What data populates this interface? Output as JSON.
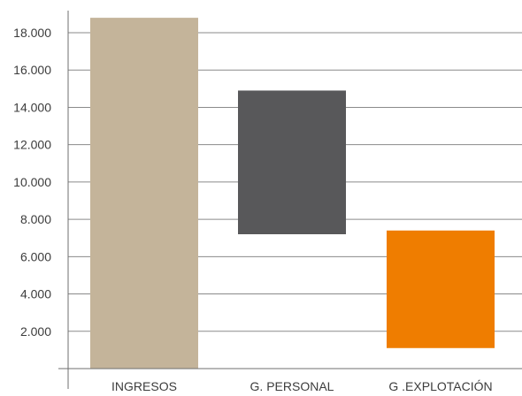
{
  "chart_data": {
    "type": "bar",
    "subtype": "floating-waterfall",
    "title": "",
    "xlabel": "",
    "ylabel": "",
    "ylim": [
      0,
      18800
    ],
    "grid": true,
    "legend": "none",
    "yticks": [
      2000,
      4000,
      6000,
      8000,
      10000,
      12000,
      14000,
      16000,
      18000
    ],
    "ytick_labels": [
      "2.000",
      "4.000",
      "6.000",
      "8.000",
      "10.000",
      "12.000",
      "14.000",
      "16.000",
      "18.000"
    ],
    "categories": [
      "INGRESOS",
      "G. PERSONAL",
      "G .EXPLOTACIÓN"
    ],
    "bars": [
      {
        "category": "INGRESOS",
        "bottom": 0,
        "top": 18800,
        "color": "#c4b49a"
      },
      {
        "category": "G. PERSONAL",
        "bottom": 7200,
        "top": 14900,
        "color": "#58585a"
      },
      {
        "category": "G .EXPLOTACIÓN",
        "bottom": 1100,
        "top": 7400,
        "color": "#ef7d00"
      }
    ]
  }
}
